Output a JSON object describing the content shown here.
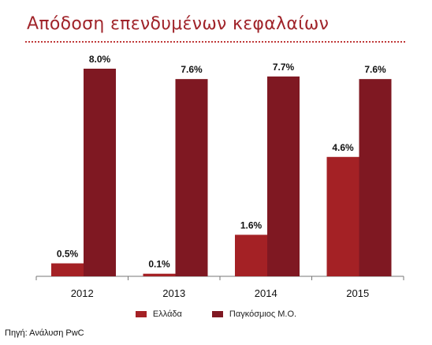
{
  "title": "Απόδοση επενδυμένων κεφαλαίων",
  "source": "Πηγή: Ανάλυση PwC",
  "colors": {
    "title": "#a0242a",
    "greece": "#a42125",
    "global": "#7f1822",
    "rule": "#c03a3a"
  },
  "chart_data": {
    "type": "bar",
    "categories": [
      "2012",
      "2013",
      "2014",
      "2015"
    ],
    "series": [
      {
        "name": "Ελλάδα",
        "values": [
          0.5,
          0.1,
          1.6,
          4.6
        ],
        "labels": [
          "0.5%",
          "0.1%",
          "1.6%",
          "4.6%"
        ]
      },
      {
        "name": "Παγκόσμιος Μ.Ο.",
        "values": [
          8.0,
          7.6,
          7.7,
          7.6
        ],
        "labels": [
          "8.0%",
          "7.6%",
          "7.7%",
          "7.6%"
        ]
      }
    ],
    "ylim": [
      0,
      8.0
    ],
    "grid": false,
    "legend_position": "bottom"
  }
}
